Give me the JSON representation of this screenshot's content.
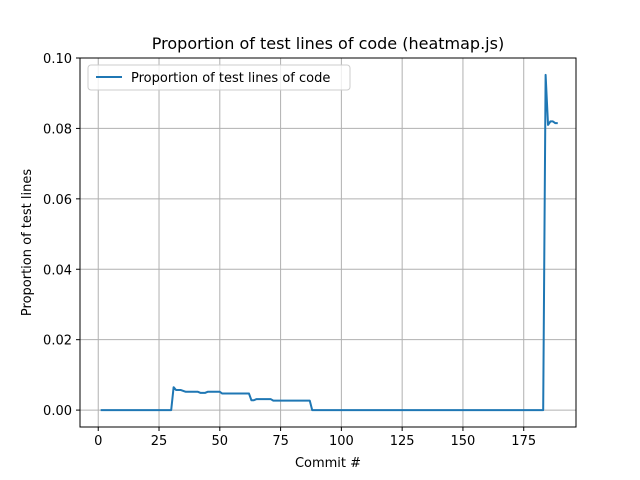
{
  "chart_data": {
    "type": "line",
    "title": "Proportion of test lines of code (heatmap.js)",
    "xlabel": "Commit #",
    "ylabel": "Proportion of test lines",
    "xlim": [
      -7.5,
      196.5
    ],
    "ylim": [
      -0.0048,
      0.1
    ],
    "xticks": [
      0,
      25,
      50,
      75,
      100,
      125,
      150,
      175
    ],
    "yticks": [
      0.0,
      0.02,
      0.04,
      0.06,
      0.08,
      0.1
    ],
    "ytick_labels": [
      "0.00",
      "0.02",
      "0.04",
      "0.06",
      "0.08",
      "0.10"
    ],
    "grid": true,
    "legend": {
      "position": "upper-left",
      "entries": [
        "Proportion of test lines of code"
      ]
    },
    "series": [
      {
        "name": "Proportion of test lines of code",
        "color": "#1f77b4",
        "x": [
          1,
          30,
          31,
          32,
          34,
          36,
          38,
          41,
          42,
          44,
          45,
          46,
          50,
          51,
          62,
          63,
          64,
          65,
          66,
          71,
          72,
          87,
          88,
          183,
          184,
          185,
          186,
          187,
          188,
          189
        ],
        "y": [
          0.0,
          0.0,
          0.0065,
          0.0057,
          0.0057,
          0.0052,
          0.0052,
          0.0052,
          0.0049,
          0.0049,
          0.0052,
          0.0052,
          0.0052,
          0.0047,
          0.0047,
          0.0028,
          0.0028,
          0.0031,
          0.0031,
          0.0031,
          0.0027,
          0.0027,
          0.0,
          0.0,
          0.0952,
          0.081,
          0.082,
          0.082,
          0.0815,
          0.0815
        ]
      }
    ]
  }
}
